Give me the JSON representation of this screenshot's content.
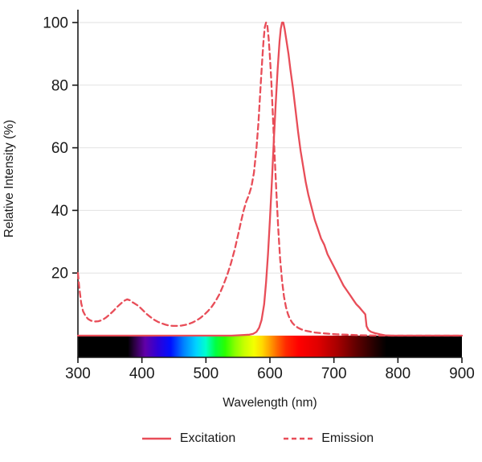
{
  "chart_data": {
    "type": "line",
    "title": "",
    "xlabel": "Wavelength (nm)",
    "ylabel": "Relative Intensity (%)",
    "xlim": [
      300,
      900
    ],
    "ylim": [
      0,
      100
    ],
    "x_ticks": [
      300,
      400,
      500,
      600,
      700,
      800,
      900
    ],
    "y_ticks": [
      20,
      40,
      60,
      80,
      100
    ],
    "grid": "horizontal",
    "legend_position": "bottom",
    "colors": {
      "line": "#e84d58",
      "grid": "#e2e2e2",
      "axis": "#1a1a1a",
      "text": "#1a1a1a"
    },
    "series": [
      {
        "name": "Excitation",
        "style": "solid",
        "color": "#e84d58",
        "points": [
          [
            300,
            0
          ],
          [
            480,
            0
          ],
          [
            540,
            0
          ],
          [
            560,
            0.2
          ],
          [
            568,
            0.3
          ],
          [
            574,
            0.6
          ],
          [
            579,
            1.2
          ],
          [
            583,
            2.5
          ],
          [
            587,
            5
          ],
          [
            591,
            10
          ],
          [
            594,
            17
          ],
          [
            597,
            26
          ],
          [
            600,
            37
          ],
          [
            603,
            49
          ],
          [
            606,
            62
          ],
          [
            609,
            74
          ],
          [
            612,
            85
          ],
          [
            615,
            94
          ],
          [
            617,
            98
          ],
          [
            619,
            100
          ],
          [
            621,
            100
          ],
          [
            623,
            98
          ],
          [
            626,
            94
          ],
          [
            629,
            90
          ],
          [
            632,
            85
          ],
          [
            636,
            79
          ],
          [
            640,
            72
          ],
          [
            644,
            65
          ],
          [
            648,
            59
          ],
          [
            652,
            54
          ],
          [
            656,
            49
          ],
          [
            660,
            45
          ],
          [
            665,
            41
          ],
          [
            670,
            37
          ],
          [
            675,
            34
          ],
          [
            680,
            31
          ],
          [
            685,
            29
          ],
          [
            690,
            26
          ],
          [
            695,
            24
          ],
          [
            700,
            22
          ],
          [
            705,
            20
          ],
          [
            710,
            18
          ],
          [
            715,
            16
          ],
          [
            720,
            14.5
          ],
          [
            725,
            13
          ],
          [
            730,
            11.5
          ],
          [
            735,
            10
          ],
          [
            740,
            9
          ],
          [
            744,
            8
          ],
          [
            747,
            7.3
          ],
          [
            749,
            6.8
          ],
          [
            751,
            3
          ],
          [
            754,
            1.8
          ],
          [
            758,
            1.2
          ],
          [
            764,
            0.8
          ],
          [
            772,
            0.4
          ],
          [
            780,
            0.1
          ],
          [
            790,
            0
          ],
          [
            900,
            0
          ]
        ]
      },
      {
        "name": "Emission",
        "style": "dashed",
        "color": "#e84d58",
        "points": [
          [
            300,
            20
          ],
          [
            302,
            15.5
          ],
          [
            305,
            10.5
          ],
          [
            308,
            7.8
          ],
          [
            312,
            6.2
          ],
          [
            316,
            5.3
          ],
          [
            320,
            4.8
          ],
          [
            326,
            4.5
          ],
          [
            332,
            4.6
          ],
          [
            338,
            5
          ],
          [
            344,
            5.8
          ],
          [
            350,
            6.8
          ],
          [
            356,
            8
          ],
          [
            362,
            9.3
          ],
          [
            368,
            10.4
          ],
          [
            373,
            11.2
          ],
          [
            377,
            11.6
          ],
          [
            381,
            11.3
          ],
          [
            385,
            10.7
          ],
          [
            389,
            10.2
          ],
          [
            393,
            9.7
          ],
          [
            397,
            9
          ],
          [
            401,
            8.2
          ],
          [
            407,
            7
          ],
          [
            413,
            6
          ],
          [
            419,
            5.1
          ],
          [
            425,
            4.4
          ],
          [
            431,
            3.9
          ],
          [
            437,
            3.5
          ],
          [
            443,
            3.2
          ],
          [
            449,
            3.1
          ],
          [
            455,
            3.1
          ],
          [
            461,
            3.2
          ],
          [
            467,
            3.4
          ],
          [
            473,
            3.7
          ],
          [
            479,
            4.2
          ],
          [
            485,
            4.8
          ],
          [
            491,
            5.6
          ],
          [
            497,
            6.6
          ],
          [
            503,
            7.8
          ],
          [
            509,
            9.2
          ],
          [
            515,
            11
          ],
          [
            521,
            13.2
          ],
          [
            527,
            16
          ],
          [
            533,
            19.2
          ],
          [
            539,
            23
          ],
          [
            545,
            27.5
          ],
          [
            550,
            32
          ],
          [
            555,
            36.5
          ],
          [
            559,
            40
          ],
          [
            563,
            42.8
          ],
          [
            567,
            44.8
          ],
          [
            571,
            47.5
          ],
          [
            575,
            52
          ],
          [
            579,
            60
          ],
          [
            582,
            68
          ],
          [
            585,
            78
          ],
          [
            588,
            88
          ],
          [
            590,
            94
          ],
          [
            592,
            98.5
          ],
          [
            594,
            100
          ],
          [
            596,
            99
          ],
          [
            598,
            95
          ],
          [
            600,
            89
          ],
          [
            602,
            82
          ],
          [
            604,
            73
          ],
          [
            607,
            59
          ],
          [
            610,
            46
          ],
          [
            613,
            34
          ],
          [
            616,
            24.5
          ],
          [
            619,
            17.5
          ],
          [
            622,
            12.5
          ],
          [
            625,
            9.2
          ],
          [
            628,
            7
          ],
          [
            631,
            5.4
          ],
          [
            635,
            4.1
          ],
          [
            639,
            3.2
          ],
          [
            644,
            2.5
          ],
          [
            649,
            2
          ],
          [
            655,
            1.6
          ],
          [
            662,
            1.3
          ],
          [
            670,
            1
          ],
          [
            680,
            0.8
          ],
          [
            692,
            0.6
          ],
          [
            705,
            0.4
          ],
          [
            720,
            0.3
          ],
          [
            738,
            0.15
          ],
          [
            755,
            0.05
          ],
          [
            770,
            0
          ],
          [
            900,
            0
          ]
        ]
      }
    ],
    "colorbar": {
      "label": "visible-spectrum-bar",
      "range_nm": [
        300,
        900
      ],
      "stops": [
        [
          300,
          "#000000"
        ],
        [
          378,
          "#000000"
        ],
        [
          388,
          "#2a0040"
        ],
        [
          405,
          "#6100a8"
        ],
        [
          425,
          "#2d00d8"
        ],
        [
          445,
          "#0010ff"
        ],
        [
          465,
          "#0080ff"
        ],
        [
          485,
          "#00d4ff"
        ],
        [
          500,
          "#00ffcc"
        ],
        [
          515,
          "#00ff44"
        ],
        [
          530,
          "#2aff00"
        ],
        [
          545,
          "#86ff00"
        ],
        [
          560,
          "#c8ff00"
        ],
        [
          575,
          "#f4ff00"
        ],
        [
          588,
          "#ffd800"
        ],
        [
          600,
          "#ffa000"
        ],
        [
          612,
          "#ff6400"
        ],
        [
          625,
          "#ff2a00"
        ],
        [
          645,
          "#ff0000"
        ],
        [
          675,
          "#e00000"
        ],
        [
          705,
          "#a80000"
        ],
        [
          735,
          "#600000"
        ],
        [
          765,
          "#200000"
        ],
        [
          782,
          "#000000"
        ],
        [
          900,
          "#000000"
        ]
      ]
    }
  }
}
